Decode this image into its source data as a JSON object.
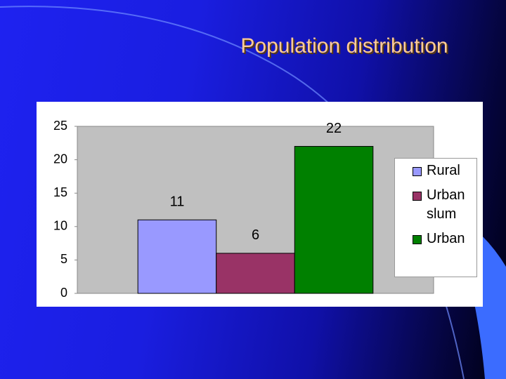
{
  "chart_data": {
    "type": "bar",
    "title": "Population distribution",
    "categories": [
      null
    ],
    "series": [
      {
        "name": "Rural",
        "color": "#9999ff",
        "values": [
          11
        ]
      },
      {
        "name": "Urban slum",
        "color": "#993366",
        "values": [
          6
        ]
      },
      {
        "name": "Urban",
        "color": "#008000",
        "values": [
          22
        ]
      }
    ],
    "ylim": [
      0,
      25
    ],
    "yticks": [
      0,
      5,
      10,
      15,
      20,
      25
    ],
    "legend": "right",
    "data_labels": true
  }
}
